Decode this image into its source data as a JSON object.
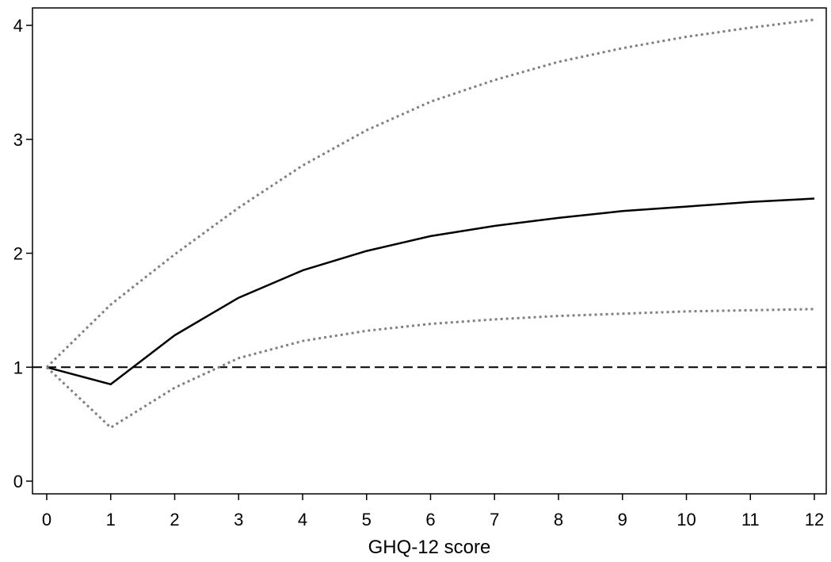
{
  "chart_data": {
    "type": "line",
    "title": "",
    "xlabel": "GHQ-12 score",
    "ylabel": "",
    "xlim": [
      0,
      12
    ],
    "ylim": [
      0,
      4
    ],
    "x_ticks": [
      "0",
      "1",
      "2",
      "3",
      "4",
      "5",
      "6",
      "7",
      "8",
      "9",
      "10",
      "11",
      "12"
    ],
    "y_ticks": [
      "0",
      "1",
      "2",
      "3",
      "4"
    ],
    "grid": false,
    "legend": "none",
    "reference_line": {
      "y": 1,
      "style": "dashed",
      "color": "#000000"
    },
    "x": [
      0,
      1,
      2,
      3,
      4,
      5,
      6,
      7,
      8,
      9,
      10,
      11,
      12
    ],
    "series": [
      {
        "role": "estimate",
        "style": "solid",
        "color": "#000000",
        "values": [
          1.0,
          0.85,
          1.28,
          1.61,
          1.85,
          2.02,
          2.15,
          2.24,
          2.31,
          2.37,
          2.41,
          2.45,
          2.48
        ]
      },
      {
        "role": "upper",
        "style": "dotted",
        "color": "#808080",
        "values": [
          1.0,
          1.55,
          1.99,
          2.4,
          2.77,
          3.08,
          3.33,
          3.52,
          3.68,
          3.8,
          3.9,
          3.98,
          4.05
        ]
      },
      {
        "role": "lower",
        "style": "dotted",
        "color": "#808080",
        "values": [
          1.0,
          0.47,
          0.82,
          1.08,
          1.23,
          1.32,
          1.38,
          1.42,
          1.45,
          1.47,
          1.49,
          1.5,
          1.51
        ]
      }
    ]
  }
}
